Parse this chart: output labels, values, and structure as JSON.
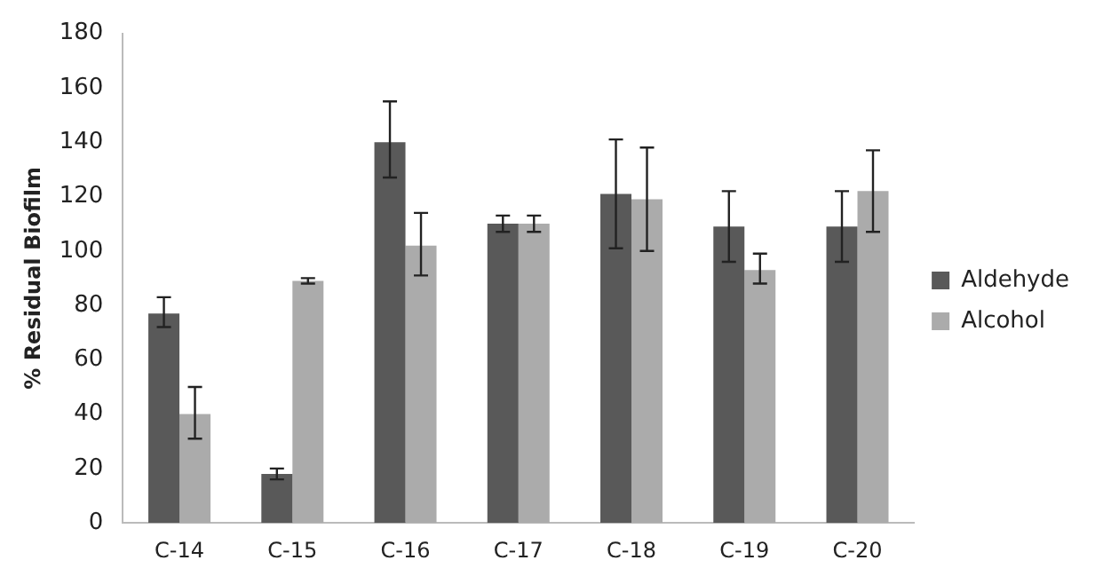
{
  "chart_data": {
    "type": "bar",
    "ylabel": "% Residual Biofilm",
    "categories": [
      "C-14",
      "C-15",
      "C-16",
      "C-17",
      "C-18",
      "C-19",
      "C-20"
    ],
    "series": [
      {
        "name": "Aldehyde",
        "color": "#595959",
        "values": [
          77,
          18,
          140,
          110,
          121,
          109,
          109
        ],
        "errors": [
          [
            72,
            83
          ],
          [
            16,
            20
          ],
          [
            127,
            155
          ],
          [
            107,
            113
          ],
          [
            101,
            141
          ],
          [
            96,
            122
          ],
          [
            96,
            122
          ]
        ]
      },
      {
        "name": "Alcohol",
        "color": "#ababab",
        "values": [
          40,
          89,
          102,
          110,
          119,
          93,
          122
        ],
        "errors": [
          [
            31,
            50
          ],
          [
            88,
            90
          ],
          [
            91,
            114
          ],
          [
            107,
            113
          ],
          [
            100,
            138
          ],
          [
            88,
            99
          ],
          [
            107,
            137
          ]
        ]
      }
    ],
    "ylim": [
      0,
      180
    ],
    "yticks": [
      0,
      20,
      40,
      60,
      80,
      100,
      120,
      140,
      160,
      180
    ],
    "grid": false,
    "legend": "right"
  }
}
